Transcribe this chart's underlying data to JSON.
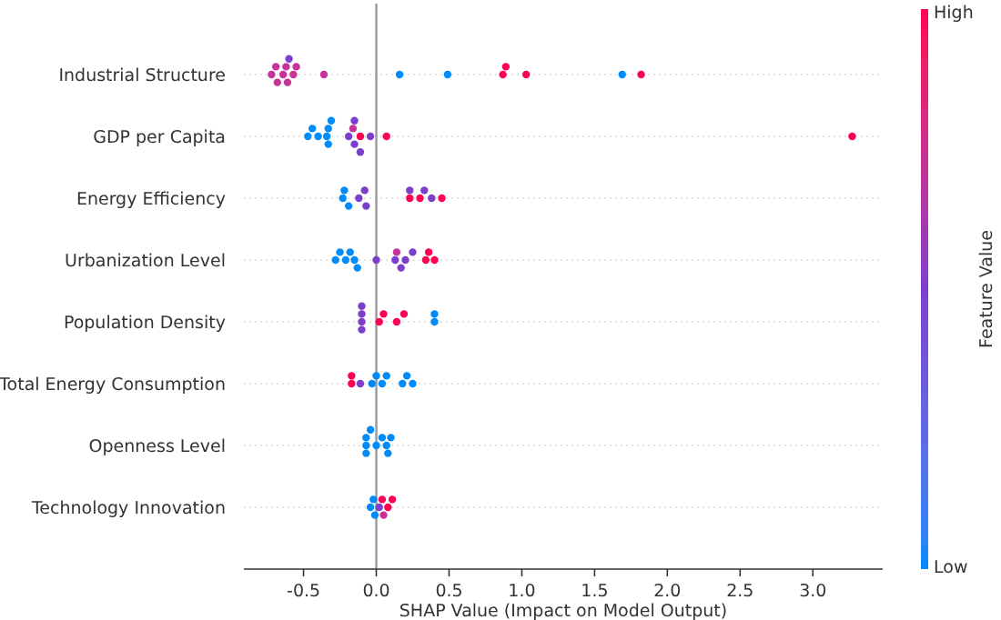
{
  "chart_data": {
    "type": "scatter",
    "orientation": "horizontal",
    "xlabel": "SHAP Value (Impact on Model Output)",
    "clabel": "Feature Value",
    "categories": [
      "Industrial Structure",
      "GDP per Capita",
      "Energy Efficiency",
      "Urbanization Level",
      "Population Density",
      "Total Energy Consumption",
      "Openness Level",
      "Technology Innovation"
    ],
    "xlim": [
      -0.91,
      3.48
    ],
    "xticks": [
      -0.5,
      {
        "value": 0,
        "label": "0.0"
      },
      0.5,
      {
        "value": 1,
        "label": "1.0"
      },
      1.5,
      {
        "value": 2,
        "label": "2.0"
      },
      2.5,
      {
        "value": 3,
        "label": "3.0"
      }
    ],
    "clim": [
      0,
      1
    ],
    "cticks": [
      {
        "value": 0,
        "label": "Low"
      },
      {
        "value": 1,
        "label": "High"
      }
    ],
    "grid": "y",
    "marker": "circle",
    "ref_lines": [
      {
        "axis": "x",
        "value": 0,
        "color": "#999999"
      }
    ],
    "series": [
      {
        "x": [
          "Industrial Structure",
          "Industrial Structure",
          "Industrial Structure",
          "Industrial Structure",
          "Industrial Structure",
          "Industrial Structure",
          "Industrial Structure",
          "Industrial Structure",
          "Industrial Structure",
          "Industrial Structure",
          "Industrial Structure",
          "Industrial Structure",
          "Industrial Structure",
          "Industrial Structure",
          "Industrial Structure",
          "Industrial Structure",
          "Industrial Structure"
        ],
        "values": [
          -0.72,
          -0.69,
          -0.68,
          -0.64,
          -0.62,
          -0.61,
          -0.6,
          -0.57,
          -0.55,
          -0.36,
          0.16,
          0.49,
          0.87,
          0.89,
          1.03,
          1.69,
          1.82
        ],
        "colors": [
          "#c8339a",
          "#c8339a",
          "#c8339a",
          "#c8339a",
          "#c8339a",
          "#c8339a",
          "#7c3fcc",
          "#c8339a",
          "#c8339a",
          "#c8339a",
          "#008bfb",
          "#008bfb",
          "#ff0052",
          "#ff0052",
          "#ff0052",
          "#008bfb",
          "#ff0052"
        ]
      },
      {
        "x": [
          "GDP per Capita",
          "GDP per Capita",
          "GDP per Capita",
          "GDP per Capita",
          "GDP per Capita",
          "GDP per Capita",
          "GDP per Capita",
          "GDP per Capita",
          "GDP per Capita",
          "GDP per Capita",
          "GDP per Capita",
          "GDP per Capita",
          "GDP per Capita",
          "GDP per Capita",
          "GDP per Capita",
          "GDP per Capita"
        ],
        "values": [
          -0.47,
          -0.44,
          -0.4,
          -0.33,
          -0.34,
          -0.33,
          -0.31,
          -0.19,
          -0.15,
          -0.16,
          -0.11,
          -0.11,
          -0.15,
          -0.04,
          0.07,
          3.27
        ],
        "colors": [
          "#008bfb",
          "#008bfb",
          "#008bfb",
          "#008bfb",
          "#008bfb",
          "#008bfb",
          "#008bfb",
          "#7c3fcc",
          "#7c3fcc",
          "#c8339a",
          "#ff0052",
          "#7c3fcc",
          "#7c3fcc",
          "#7c3fcc",
          "#ff0052",
          "#ff0052"
        ]
      },
      {
        "x": [
          "Energy Efficiency",
          "Energy Efficiency",
          "Energy Efficiency",
          "Energy Efficiency",
          "Energy Efficiency",
          "Energy Efficiency",
          "Energy Efficiency",
          "Energy Efficiency",
          "Energy Efficiency",
          "Energy Efficiency",
          "Energy Efficiency",
          "Energy Efficiency"
        ],
        "values": [
          -0.23,
          -0.22,
          -0.19,
          -0.12,
          -0.08,
          -0.07,
          0.23,
          0.23,
          0.3,
          0.33,
          0.38,
          0.45
        ],
        "colors": [
          "#008bfb",
          "#008bfb",
          "#008bfb",
          "#7c3fcc",
          "#7c3fcc",
          "#7c3fcc",
          "#ff0052",
          "#7c3fcc",
          "#ff0052",
          "#7c3fcc",
          "#7c3fcc",
          "#ff0052"
        ]
      },
      {
        "x": [
          "Urbanization Level",
          "Urbanization Level",
          "Urbanization Level",
          "Urbanization Level",
          "Urbanization Level",
          "Urbanization Level",
          "Urbanization Level",
          "Urbanization Level",
          "Urbanization Level",
          "Urbanization Level",
          "Urbanization Level",
          "Urbanization Level",
          "Urbanization Level",
          "Urbanization Level",
          "Urbanization Level"
        ],
        "values": [
          -0.28,
          -0.25,
          -0.21,
          -0.18,
          -0.15,
          -0.13,
          0,
          0.13,
          0.14,
          0.17,
          0.2,
          0.25,
          0.34,
          0.36,
          0.4
        ],
        "colors": [
          "#008bfb",
          "#008bfb",
          "#008bfb",
          "#008bfb",
          "#008bfb",
          "#008bfb",
          "#7c3fcc",
          "#7c3fcc",
          "#c8339a",
          "#7c3fcc",
          "#7c3fcc",
          "#7c3fcc",
          "#ff0052",
          "#ff0052",
          "#ff0052"
        ]
      },
      {
        "x": [
          "Population Density",
          "Population Density",
          "Population Density",
          "Population Density",
          "Population Density",
          "Population Density",
          "Population Density",
          "Population Density",
          "Population Density",
          "Population Density"
        ],
        "values": [
          -0.1,
          -0.1,
          -0.1,
          -0.1,
          0.02,
          0.05,
          0.14,
          0.19,
          0.4,
          0.4
        ],
        "colors": [
          "#7c3fcc",
          "#7c3fcc",
          "#7c3fcc",
          "#7c3fcc",
          "#ff0052",
          "#ff0052",
          "#ff0052",
          "#ff0052",
          "#008bfb",
          "#008bfb"
        ]
      },
      {
        "x": [
          "Total Energy Consumption",
          "Total Energy Consumption",
          "Total Energy Consumption",
          "Total Energy Consumption",
          "Total Energy Consumption",
          "Total Energy Consumption",
          "Total Energy Consumption",
          "Total Energy Consumption",
          "Total Energy Consumption",
          "Total Energy Consumption"
        ],
        "values": [
          -0.17,
          -0.17,
          -0.11,
          -0.03,
          0,
          0.04,
          0.07,
          0.18,
          0.21,
          0.25
        ],
        "colors": [
          "#ff0052",
          "#ff0052",
          "#7c3fcc",
          "#008bfb",
          "#008bfb",
          "#008bfb",
          "#008bfb",
          "#008bfb",
          "#008bfb",
          "#008bfb"
        ]
      },
      {
        "x": [
          "Openness Level",
          "Openness Level",
          "Openness Level",
          "Openness Level",
          "Openness Level",
          "Openness Level",
          "Openness Level",
          "Openness Level",
          "Openness Level"
        ],
        "values": [
          -0.07,
          0.07,
          -0.07,
          -0.04,
          0,
          0.04,
          0.08,
          0.1,
          -0.07
        ],
        "color": "#008bfb"
      },
      {
        "x": [
          "Technology Innovation",
          "Technology Innovation",
          "Technology Innovation",
          "Technology Innovation",
          "Technology Innovation",
          "Technology Innovation",
          "Technology Innovation",
          "Technology Innovation"
        ],
        "values": [
          -0.02,
          0.04,
          -0.04,
          -0.01,
          0.02,
          0.05,
          0.08,
          0.11
        ],
        "colors": [
          "#008bfb",
          "#ff0052",
          "#008bfb",
          "#008bfb",
          "#7c3fcc",
          "#c8339a",
          "#ff0052",
          "#ff0052"
        ]
      }
    ]
  }
}
